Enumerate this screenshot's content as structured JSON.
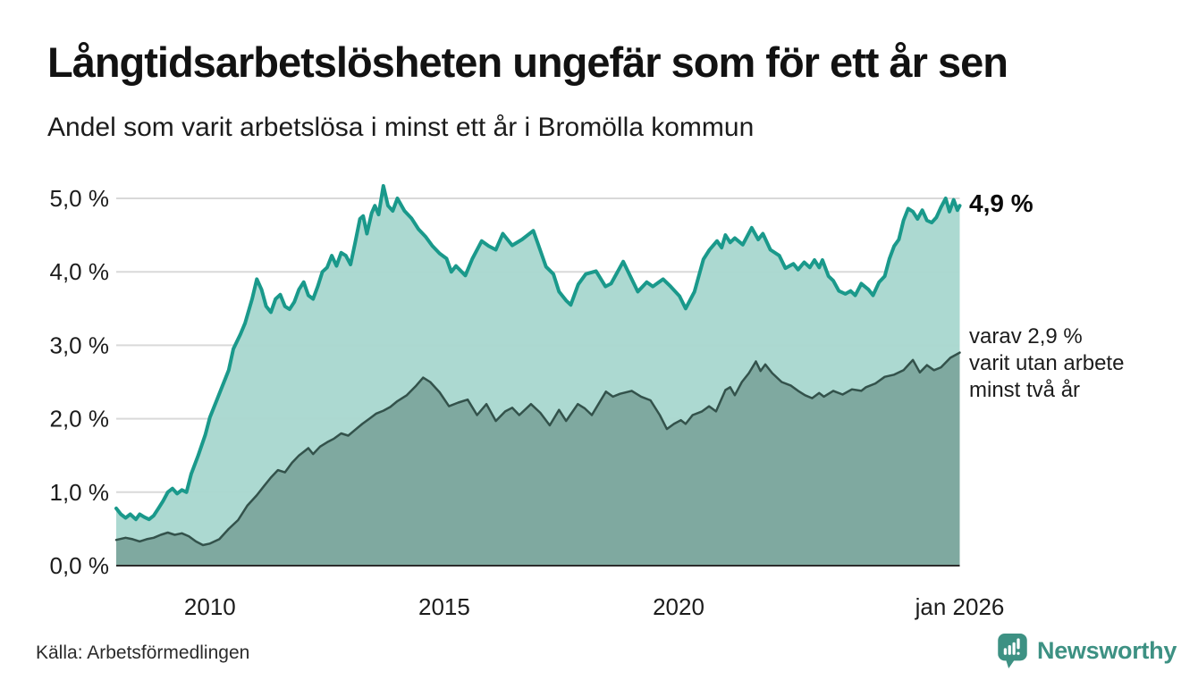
{
  "header": {
    "title": "Långtidsarbetslösheten ungefär som för ett år sen",
    "subtitle": "Andel som varit arbetslösa i minst ett år i Bromölla kommun"
  },
  "chart_labels": {
    "latest_value": "4,9 %",
    "sub_annotation_lines": [
      "varav 2,9 %",
      "varit utan arbete",
      "minst två år"
    ]
  },
  "footer": {
    "source": "Källa: Arbetsförmedlingen",
    "brand": "Newsworthy"
  },
  "icons": {
    "logo_icon": "newsworthy-speech-bubble-bar-chart"
  },
  "colors": {
    "series1_line": "#1a998b",
    "series1_fill": "#a9d8d0",
    "series2_line": "#33524b",
    "series2_fill": "#7da79e",
    "gridline": "#d9d9d9",
    "axis": "#2b2b2b",
    "brand": "#3d9183"
  },
  "chart_data": {
    "type": "area",
    "title": "Långtidsarbetslösheten ungefär som för ett år sen",
    "subtitle": "Andel som varit arbetslösa i minst ett år i Bromölla kommun",
    "unit": "%",
    "x_range": [
      2008,
      2026
    ],
    "ylim": [
      0,
      5.4
    ],
    "grid": true,
    "yticks": [
      {
        "value": 0,
        "label": "0,0 %"
      },
      {
        "value": 1,
        "label": "1,0 %"
      },
      {
        "value": 2,
        "label": "2,0 %"
      },
      {
        "value": 3,
        "label": "3,0 %"
      },
      {
        "value": 4,
        "label": "4,0 %"
      },
      {
        "value": 5,
        "label": "5,0 %"
      }
    ],
    "xticks": [
      {
        "value": 2010,
        "label": "2010"
      },
      {
        "value": 2015,
        "label": "2015"
      },
      {
        "value": 2020,
        "label": "2020"
      },
      {
        "value": 2026,
        "label": "jan 2026"
      }
    ],
    "series": [
      {
        "name": "Andel arbetslösa minst ett år",
        "line_color": "#1a998b",
        "fill_color": "#a9d8d0",
        "line_width": 4,
        "end_label": "4,9 %",
        "latest_value": 4.9,
        "points": [
          [
            2008.0,
            0.78
          ],
          [
            2008.1,
            0.7
          ],
          [
            2008.2,
            0.65
          ],
          [
            2008.3,
            0.7
          ],
          [
            2008.42,
            0.63
          ],
          [
            2008.5,
            0.7
          ],
          [
            2008.6,
            0.66
          ],
          [
            2008.7,
            0.63
          ],
          [
            2008.8,
            0.68
          ],
          [
            2008.9,
            0.78
          ],
          [
            2009.0,
            0.88
          ],
          [
            2009.1,
            1.0
          ],
          [
            2009.2,
            1.05
          ],
          [
            2009.3,
            0.98
          ],
          [
            2009.4,
            1.03
          ],
          [
            2009.5,
            1.0
          ],
          [
            2009.6,
            1.25
          ],
          [
            2009.75,
            1.5
          ],
          [
            2009.9,
            1.78
          ],
          [
            2010.0,
            2.02
          ],
          [
            2010.15,
            2.26
          ],
          [
            2010.25,
            2.42
          ],
          [
            2010.4,
            2.66
          ],
          [
            2010.5,
            2.95
          ],
          [
            2010.65,
            3.15
          ],
          [
            2010.75,
            3.3
          ],
          [
            2010.9,
            3.63
          ],
          [
            2011.0,
            3.9
          ],
          [
            2011.1,
            3.76
          ],
          [
            2011.2,
            3.53
          ],
          [
            2011.3,
            3.45
          ],
          [
            2011.4,
            3.63
          ],
          [
            2011.5,
            3.69
          ],
          [
            2011.6,
            3.53
          ],
          [
            2011.7,
            3.49
          ],
          [
            2011.8,
            3.59
          ],
          [
            2011.9,
            3.76
          ],
          [
            2012.0,
            3.86
          ],
          [
            2012.1,
            3.68
          ],
          [
            2012.2,
            3.63
          ],
          [
            2012.3,
            3.8
          ],
          [
            2012.4,
            4.0
          ],
          [
            2012.5,
            4.06
          ],
          [
            2012.6,
            4.22
          ],
          [
            2012.7,
            4.08
          ],
          [
            2012.8,
            4.26
          ],
          [
            2012.9,
            4.22
          ],
          [
            2013.0,
            4.1
          ],
          [
            2013.1,
            4.4
          ],
          [
            2013.2,
            4.72
          ],
          [
            2013.27,
            4.76
          ],
          [
            2013.35,
            4.52
          ],
          [
            2013.45,
            4.8
          ],
          [
            2013.52,
            4.9
          ],
          [
            2013.6,
            4.78
          ],
          [
            2013.7,
            5.17
          ],
          [
            2013.8,
            4.9
          ],
          [
            2013.9,
            4.83
          ],
          [
            2014.0,
            5.0
          ],
          [
            2014.15,
            4.83
          ],
          [
            2014.3,
            4.73
          ],
          [
            2014.45,
            4.58
          ],
          [
            2014.6,
            4.48
          ],
          [
            2014.75,
            4.35
          ],
          [
            2014.9,
            4.25
          ],
          [
            2015.05,
            4.18
          ],
          [
            2015.15,
            4.0
          ],
          [
            2015.25,
            4.08
          ],
          [
            2015.45,
            3.95
          ],
          [
            2015.6,
            4.18
          ],
          [
            2015.8,
            4.42
          ],
          [
            2015.95,
            4.35
          ],
          [
            2016.1,
            4.3
          ],
          [
            2016.25,
            4.52
          ],
          [
            2016.45,
            4.36
          ],
          [
            2016.66,
            4.44
          ],
          [
            2016.9,
            4.56
          ],
          [
            2017.0,
            4.38
          ],
          [
            2017.17,
            4.07
          ],
          [
            2017.33,
            3.97
          ],
          [
            2017.45,
            3.73
          ],
          [
            2017.6,
            3.61
          ],
          [
            2017.7,
            3.55
          ],
          [
            2017.86,
            3.83
          ],
          [
            2018.02,
            3.97
          ],
          [
            2018.24,
            4.01
          ],
          [
            2018.44,
            3.8
          ],
          [
            2018.56,
            3.84
          ],
          [
            2018.82,
            4.14
          ],
          [
            2019.0,
            3.9
          ],
          [
            2019.13,
            3.73
          ],
          [
            2019.32,
            3.86
          ],
          [
            2019.45,
            3.8
          ],
          [
            2019.67,
            3.9
          ],
          [
            2019.83,
            3.8
          ],
          [
            2020.02,
            3.67
          ],
          [
            2020.15,
            3.5
          ],
          [
            2020.34,
            3.73
          ],
          [
            2020.53,
            4.17
          ],
          [
            2020.66,
            4.3
          ],
          [
            2020.82,
            4.42
          ],
          [
            2020.92,
            4.33
          ],
          [
            2021.0,
            4.5
          ],
          [
            2021.1,
            4.4
          ],
          [
            2021.2,
            4.46
          ],
          [
            2021.37,
            4.37
          ],
          [
            2021.56,
            4.6
          ],
          [
            2021.7,
            4.44
          ],
          [
            2021.8,
            4.52
          ],
          [
            2021.96,
            4.3
          ],
          [
            2022.15,
            4.22
          ],
          [
            2022.28,
            4.05
          ],
          [
            2022.45,
            4.11
          ],
          [
            2022.55,
            4.03
          ],
          [
            2022.68,
            4.13
          ],
          [
            2022.8,
            4.06
          ],
          [
            2022.9,
            4.16
          ],
          [
            2023.0,
            4.06
          ],
          [
            2023.07,
            4.16
          ],
          [
            2023.2,
            3.94
          ],
          [
            2023.3,
            3.88
          ],
          [
            2023.42,
            3.74
          ],
          [
            2023.56,
            3.7
          ],
          [
            2023.67,
            3.74
          ],
          [
            2023.77,
            3.68
          ],
          [
            2023.9,
            3.84
          ],
          [
            2024.05,
            3.76
          ],
          [
            2024.15,
            3.68
          ],
          [
            2024.28,
            3.86
          ],
          [
            2024.4,
            3.94
          ],
          [
            2024.5,
            4.18
          ],
          [
            2024.6,
            4.35
          ],
          [
            2024.7,
            4.44
          ],
          [
            2024.8,
            4.7
          ],
          [
            2024.9,
            4.86
          ],
          [
            2025.0,
            4.82
          ],
          [
            2025.1,
            4.72
          ],
          [
            2025.2,
            4.84
          ],
          [
            2025.3,
            4.7
          ],
          [
            2025.4,
            4.67
          ],
          [
            2025.5,
            4.74
          ],
          [
            2025.6,
            4.88
          ],
          [
            2025.7,
            5.0
          ],
          [
            2025.78,
            4.82
          ],
          [
            2025.87,
            4.98
          ],
          [
            2025.95,
            4.84
          ],
          [
            2026.0,
            4.9
          ]
        ]
      },
      {
        "name": "varav utan arbete minst två år",
        "line_color": "#33524b",
        "fill_color": "#7da79e",
        "line_width": 2.5,
        "end_label": "varav 2,9 % varit utan arbete minst två år",
        "latest_value": 2.9,
        "points": [
          [
            2008.0,
            0.35
          ],
          [
            2008.2,
            0.38
          ],
          [
            2008.35,
            0.36
          ],
          [
            2008.5,
            0.33
          ],
          [
            2008.65,
            0.36
          ],
          [
            2008.8,
            0.38
          ],
          [
            2008.95,
            0.42
          ],
          [
            2009.1,
            0.45
          ],
          [
            2009.25,
            0.42
          ],
          [
            2009.4,
            0.44
          ],
          [
            2009.55,
            0.4
          ],
          [
            2009.7,
            0.33
          ],
          [
            2009.85,
            0.28
          ],
          [
            2010.0,
            0.3
          ],
          [
            2010.2,
            0.36
          ],
          [
            2010.4,
            0.5
          ],
          [
            2010.6,
            0.62
          ],
          [
            2010.8,
            0.82
          ],
          [
            2011.0,
            0.96
          ],
          [
            2011.15,
            1.08
          ],
          [
            2011.3,
            1.2
          ],
          [
            2011.45,
            1.3
          ],
          [
            2011.6,
            1.27
          ],
          [
            2011.75,
            1.4
          ],
          [
            2011.9,
            1.5
          ],
          [
            2012.0,
            1.55
          ],
          [
            2012.1,
            1.6
          ],
          [
            2012.2,
            1.52
          ],
          [
            2012.35,
            1.62
          ],
          [
            2012.5,
            1.68
          ],
          [
            2012.65,
            1.73
          ],
          [
            2012.8,
            1.8
          ],
          [
            2012.95,
            1.77
          ],
          [
            2013.1,
            1.85
          ],
          [
            2013.25,
            1.93
          ],
          [
            2013.4,
            2.0
          ],
          [
            2013.55,
            2.07
          ],
          [
            2013.7,
            2.11
          ],
          [
            2013.85,
            2.16
          ],
          [
            2014.0,
            2.24
          ],
          [
            2014.2,
            2.32
          ],
          [
            2014.4,
            2.45
          ],
          [
            2014.55,
            2.56
          ],
          [
            2014.7,
            2.5
          ],
          [
            2014.9,
            2.36
          ],
          [
            2015.1,
            2.17
          ],
          [
            2015.3,
            2.22
          ],
          [
            2015.5,
            2.26
          ],
          [
            2015.7,
            2.05
          ],
          [
            2015.9,
            2.2
          ],
          [
            2016.1,
            1.97
          ],
          [
            2016.3,
            2.1
          ],
          [
            2016.45,
            2.15
          ],
          [
            2016.6,
            2.05
          ],
          [
            2016.85,
            2.2
          ],
          [
            2017.05,
            2.08
          ],
          [
            2017.25,
            1.91
          ],
          [
            2017.45,
            2.12
          ],
          [
            2017.6,
            1.97
          ],
          [
            2017.85,
            2.2
          ],
          [
            2018.0,
            2.14
          ],
          [
            2018.15,
            2.05
          ],
          [
            2018.45,
            2.37
          ],
          [
            2018.6,
            2.3
          ],
          [
            2018.75,
            2.34
          ],
          [
            2019.0,
            2.38
          ],
          [
            2019.2,
            2.3
          ],
          [
            2019.4,
            2.25
          ],
          [
            2019.6,
            2.05
          ],
          [
            2019.75,
            1.86
          ],
          [
            2019.9,
            1.93
          ],
          [
            2020.05,
            1.98
          ],
          [
            2020.15,
            1.93
          ],
          [
            2020.3,
            2.05
          ],
          [
            2020.5,
            2.1
          ],
          [
            2020.65,
            2.17
          ],
          [
            2020.8,
            2.1
          ],
          [
            2021.0,
            2.39
          ],
          [
            2021.1,
            2.43
          ],
          [
            2021.2,
            2.32
          ],
          [
            2021.35,
            2.5
          ],
          [
            2021.5,
            2.62
          ],
          [
            2021.65,
            2.78
          ],
          [
            2021.75,
            2.65
          ],
          [
            2021.85,
            2.74
          ],
          [
            2022.0,
            2.62
          ],
          [
            2022.2,
            2.5
          ],
          [
            2022.4,
            2.45
          ],
          [
            2022.55,
            2.38
          ],
          [
            2022.7,
            2.32
          ],
          [
            2022.85,
            2.28
          ],
          [
            2023.0,
            2.35
          ],
          [
            2023.1,
            2.3
          ],
          [
            2023.3,
            2.38
          ],
          [
            2023.5,
            2.33
          ],
          [
            2023.7,
            2.4
          ],
          [
            2023.9,
            2.38
          ],
          [
            2024.0,
            2.43
          ],
          [
            2024.2,
            2.48
          ],
          [
            2024.4,
            2.57
          ],
          [
            2024.6,
            2.6
          ],
          [
            2024.8,
            2.66
          ],
          [
            2025.0,
            2.8
          ],
          [
            2025.15,
            2.63
          ],
          [
            2025.3,
            2.73
          ],
          [
            2025.45,
            2.66
          ],
          [
            2025.6,
            2.7
          ],
          [
            2025.8,
            2.83
          ],
          [
            2026.0,
            2.9
          ]
        ]
      }
    ]
  }
}
